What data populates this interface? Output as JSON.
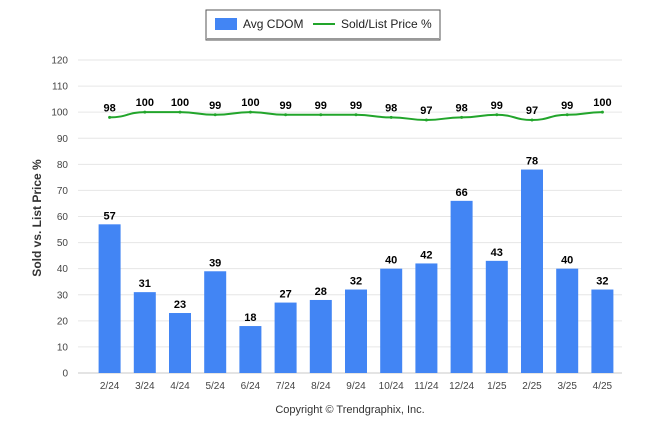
{
  "chart_data": {
    "type": "bar",
    "categories": [
      "2/24",
      "3/24",
      "4/24",
      "5/24",
      "6/24",
      "7/24",
      "8/24",
      "9/24",
      "10/24",
      "11/24",
      "12/24",
      "1/25",
      "2/25",
      "3/25",
      "4/25"
    ],
    "series": [
      {
        "name": "Avg CDOM",
        "kind": "bar",
        "color": "#4285F4",
        "values": [
          57,
          31,
          23,
          39,
          18,
          27,
          28,
          32,
          40,
          42,
          66,
          43,
          78,
          40,
          32
        ]
      },
      {
        "name": "Sold/List Price %",
        "kind": "line",
        "color": "#22A52B",
        "values": [
          98,
          100,
          100,
          99,
          100,
          99,
          99,
          99,
          98,
          97,
          98,
          99,
          97,
          99,
          100
        ]
      }
    ],
    "ylabel": "Sold vs. List Price %",
    "ylim": [
      0,
      120
    ],
    "yticks": [
      0,
      10,
      20,
      30,
      40,
      50,
      60,
      70,
      80,
      90,
      100,
      110,
      120
    ],
    "grid": true,
    "legend_position": "top-center"
  },
  "footer": {
    "copyright": "Copyright © Trendgraphix, Inc."
  }
}
